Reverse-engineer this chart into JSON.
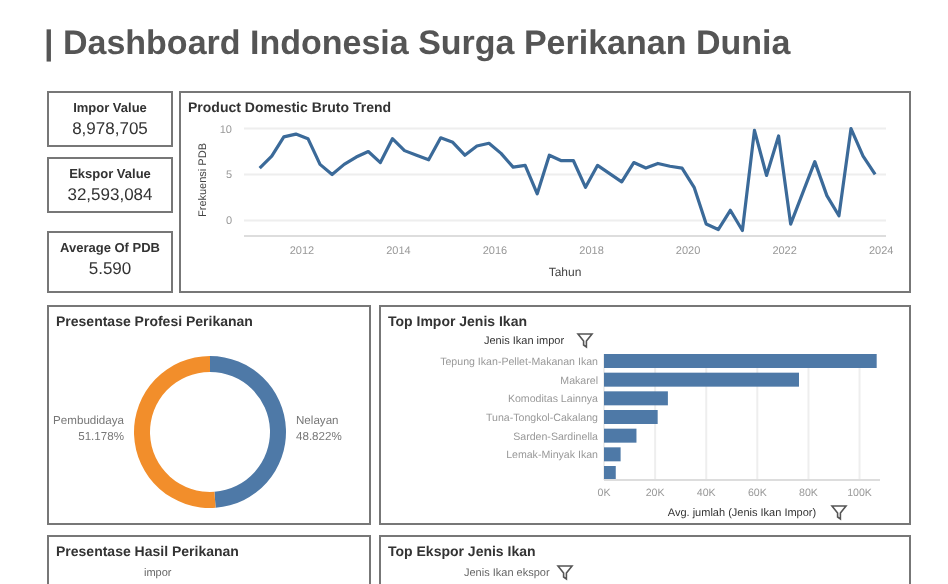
{
  "chart_data": [
    {
      "type": "other",
      "title": "| Dashboard Indonesia Surga Perikanan Dunia",
      "annotations": [
        "Impor Value",
        "8,978,705",
        "Ekspor Value",
        "32,593,084",
        "Average Of PDB",
        "5.590"
      ]
    },
    {
      "type": "line",
      "title": "Product Domestic Bruto Trend",
      "xlabel": "Tahun",
      "ylabel": "Frekuensi PDB",
      "xlim": [
        2010.8,
        2024.1
      ],
      "xticks": [
        2012,
        2014,
        2016,
        2018,
        2020,
        2022,
        2024
      ],
      "ylim": [
        -1.7,
        10.5
      ],
      "yticks": [
        0,
        5,
        10
      ],
      "grid": "y",
      "marker": "none",
      "series": [
        {
          "color": "#3b6a99",
          "x": [
            2011.125,
            2011.375,
            2011.625,
            2011.875,
            2012.125,
            2012.375,
            2012.625,
            2012.875,
            2013.125,
            2013.375,
            2013.625,
            2013.875,
            2014.125,
            2014.375,
            2014.625,
            2014.875,
            2015.125,
            2015.375,
            2015.625,
            2015.875,
            2016.125,
            2016.375,
            2016.625,
            2016.875,
            2017.125,
            2017.375,
            2017.625,
            2017.875,
            2018.125,
            2018.375,
            2018.625,
            2018.875,
            2019.125,
            2019.375,
            2019.625,
            2019.875,
            2020.125,
            2020.375,
            2020.625,
            2020.875,
            2021.125,
            2021.375,
            2021.625,
            2021.875,
            2022.125,
            2022.375,
            2022.625,
            2022.875,
            2023.125,
            2023.375,
            2023.625,
            2023.875
          ],
          "values": [
            5.7,
            7.0,
            9.1,
            9.4,
            8.9,
            6.1,
            5.0,
            6.1,
            6.9,
            7.5,
            6.3,
            8.9,
            7.6,
            7.1,
            6.6,
            9.0,
            8.5,
            7.1,
            8.1,
            8.4,
            7.3,
            5.8,
            6.0,
            2.9,
            7.1,
            6.5,
            6.5,
            3.6,
            6.0,
            5.1,
            4.2,
            6.3,
            5.7,
            6.2,
            5.9,
            5.7,
            3.6,
            -0.4,
            -1.0,
            1.1,
            -1.1,
            9.8,
            4.9,
            9.2,
            -0.4,
            3.0,
            6.4,
            2.7,
            0.5,
            10.0,
            7.0,
            5.0
          ]
        }
      ]
    },
    {
      "type": "donut",
      "title": "Presentase Profesi Perikanan",
      "categories": [
        "Nelayan",
        "Pembudidaya"
      ],
      "values": [
        48.822,
        51.178
      ],
      "colors": [
        "#4e79a7",
        "#f28e2b"
      ],
      "value_labels": [
        "48.822%",
        "51.178%"
      ]
    },
    {
      "type": "bar",
      "orientation": "horizontal",
      "title": "Top Impor Jenis Ikan",
      "ylabel": "Jenis Ikan impor",
      "xlabel": "Avg. jumlah (Jenis Ikan Impor)",
      "categories": [
        "Tepung Ikan-Pellet-Makanan Ikan",
        "Makarel",
        "Komoditas Lainnya",
        "Tuna-Tongkol-Cakalang",
        "Sarden-Sardinella",
        "Lemak-Minyak Ikan",
        null
      ],
      "values": [
        106700,
        76300,
        25000,
        21000,
        12700,
        6500,
        4600
      ],
      "color": "#4e79a7",
      "xlim": [
        0,
        108000
      ],
      "xticks": [
        {
          "value": 0,
          "label": "0K"
        },
        {
          "value": 20000,
          "label": "20K"
        },
        {
          "value": 40000,
          "label": "40K"
        },
        {
          "value": 60000,
          "label": "60K"
        },
        {
          "value": 80000,
          "label": "80K"
        },
        {
          "value": 100000,
          "label": "100K"
        }
      ],
      "grid": "x"
    },
    {
      "type": "other",
      "title": "Presentase Hasil Perikanan",
      "annotations": [
        "impor"
      ]
    },
    {
      "type": "other",
      "title": "Top Ekspor Jenis Ikan",
      "annotations": [
        "Jenis Ikan ekspor"
      ]
    }
  ]
}
